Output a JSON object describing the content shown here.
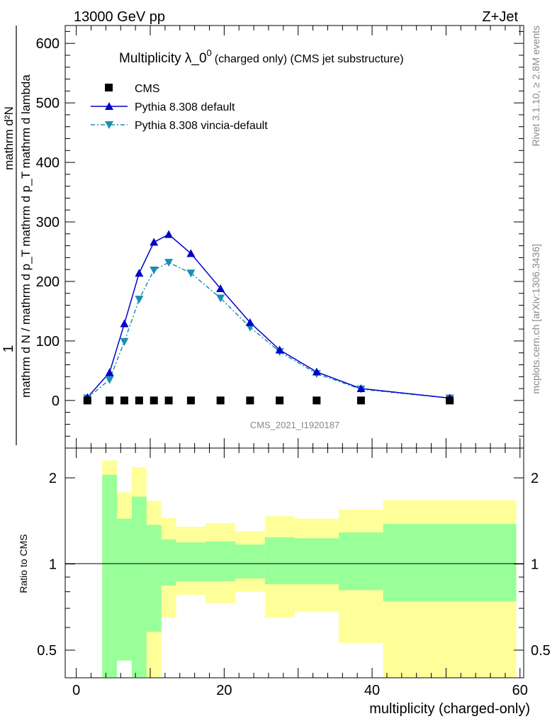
{
  "header": {
    "left": "13000 GeV pp",
    "right": "Z+Jet"
  },
  "side_labels": {
    "rivet": "Rivet 3.1.10, ≥ 2.8M events",
    "mcplots": "mcplots.cern.ch [arXiv:1306.3436]"
  },
  "watermark": "CMS_2021_I1920187",
  "colors": {
    "data": "#000000",
    "pythia_default": "#0000cc",
    "pythia_vincia": "#1a8fb5",
    "band_inner": "#99ff99",
    "band_outer": "#ffff99"
  },
  "chart_data": [
    {
      "type": "line",
      "title": "Multiplicity λ_0",
      "title_sup": "0",
      "title_suffix": "(charged only) (CMS jet substructure)",
      "xlabel": "",
      "ylabel_numerator": "1",
      "ylabel_denominator": "mathrm d N / mathrm d p_T mathrm d p_T mathrm d lambda",
      "ylabel_right_numerator": "mathrm d²N",
      "ylim": [
        -80,
        630
      ],
      "xlim": [
        -1.5,
        60.5
      ],
      "yticks": [
        0,
        100,
        200,
        300,
        400,
        500,
        600
      ],
      "legend_position": "top-left",
      "series": [
        {
          "name": "CMS",
          "marker": "square",
          "x": [
            1.5,
            4.5,
            6.5,
            8.5,
            10.5,
            12.5,
            15.5,
            19.5,
            23.5,
            27.5,
            32.5,
            38.5,
            50.5
          ],
          "values": [
            0,
            0,
            0,
            0,
            0,
            0,
            0,
            0,
            0,
            0,
            0,
            0,
            0
          ]
        },
        {
          "name": "Pythia 8.308 default",
          "marker": "triangle-up",
          "x": [
            1.5,
            4.5,
            6.5,
            8.5,
            10.5,
            12.5,
            15.5,
            19.5,
            23.5,
            27.5,
            32.5,
            38.5,
            50.5
          ],
          "values": [
            5,
            47,
            129,
            214,
            266,
            279,
            247,
            188,
            131,
            85,
            48,
            20,
            4
          ]
        },
        {
          "name": "Pythia 8.308 vincia-default",
          "marker": "triangle-down",
          "x": [
            1.5,
            4.5,
            6.5,
            8.5,
            10.5,
            12.5,
            15.5,
            19.5,
            23.5,
            27.5,
            32.5,
            38.5,
            50.5
          ],
          "values": [
            4,
            35,
            99,
            170,
            219,
            232,
            214,
            172,
            123,
            82,
            45,
            19,
            4
          ]
        }
      ]
    },
    {
      "type": "area",
      "ylabel": "Ratio to CMS",
      "xlabel": "multiplicity (charged-only)",
      "xlim": [
        -1.5,
        60.5
      ],
      "ylim": [
        0.35,
        2.3
      ],
      "xticks": [
        0,
        20,
        40,
        60
      ],
      "yticks": [
        0.5,
        1,
        2
      ],
      "ytick_labels": [
        "0.5",
        "1",
        "2"
      ],
      "bin_edges": [
        0,
        3.5,
        5.5,
        7.5,
        9.5,
        11.5,
        13.5,
        17.5,
        21.5,
        25.5,
        29.5,
        35.5,
        41.5,
        59.5
      ],
      "series": [
        {
          "name": "inner band",
          "lower": [
            null,
            0.2,
            0.46,
            0.2,
            0.58,
            0.84,
            0.87,
            0.87,
            0.89,
            0.85,
            0.85,
            0.81,
            0.74
          ],
          "upper": [
            null,
            2.05,
            1.44,
            1.72,
            1.37,
            1.22,
            1.19,
            1.2,
            1.17,
            1.24,
            1.23,
            1.29,
            1.38
          ]
        },
        {
          "name": "outer band",
          "lower": [
            null,
            0.2,
            0.68,
            0.2,
            0.38,
            0.65,
            0.78,
            0.73,
            0.8,
            0.65,
            0.68,
            0.53,
            0.2
          ],
          "upper": [
            null,
            2.3,
            1.78,
            2.18,
            1.66,
            1.45,
            1.35,
            1.39,
            1.3,
            1.47,
            1.44,
            1.55,
            1.67
          ]
        }
      ]
    }
  ]
}
